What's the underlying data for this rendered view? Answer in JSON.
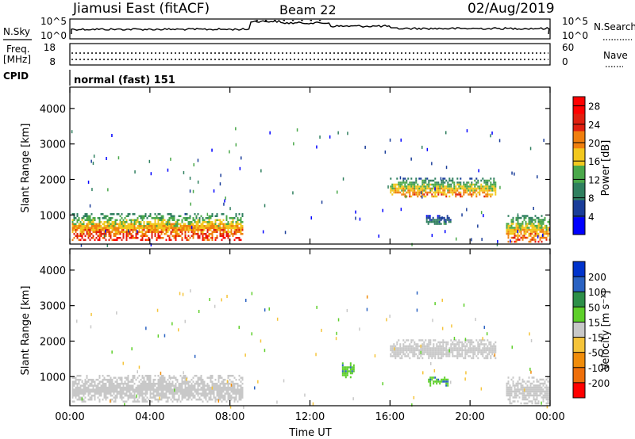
{
  "header": {
    "title": "Jiamusi East (fitACF)",
    "beam": "Beam 22",
    "date": "02/Aug/2019"
  },
  "noise_panel": {
    "left_label": "N.Sky",
    "right_label": "N.Search",
    "left_ticks": [
      "10^5",
      "10^0"
    ],
    "right_ticks": [
      "10^5",
      "10^0"
    ]
  },
  "freq_panel": {
    "left_label_1": "Freq.",
    "left_label_2": "[MHz]",
    "left_ticks": [
      "18",
      "8"
    ],
    "right_label": "Nave",
    "right_ticks": [
      "60",
      "0"
    ]
  },
  "cpid": {
    "label": "CPID",
    "value": "normal (fast) 151"
  },
  "chart_data": [
    {
      "type": "heatmap",
      "xlabel": "Time UT",
      "ylabel": "Slant Range [km]",
      "x_ticks": [
        "00:00",
        "04:00",
        "08:00",
        "12:00",
        "16:00",
        "20:00",
        "00:00"
      ],
      "x_range_hours": [
        0,
        24
      ],
      "ylim": [
        180,
        4600
      ],
      "y_ticks": [
        1000,
        2000,
        3000,
        4000
      ],
      "colorbar": {
        "label": "Power [dB]",
        "ticks": [
          4,
          8,
          12,
          16,
          20,
          24,
          28
        ],
        "range": [
          0,
          30
        ],
        "colors": [
          "#0000ff",
          "#1a3d99",
          "#2f7f5f",
          "#4aa84a",
          "#f2c81e",
          "#f07f0e",
          "#e01f0f",
          "#ff0000"
        ]
      },
      "echo_regions": [
        {
          "t_start": 0.1,
          "t_end": 8.6,
          "r_start": 280,
          "r_end": 1050,
          "peak_dB": 28
        },
        {
          "t_start": 16.0,
          "t_end": 21.3,
          "r_start": 1500,
          "r_end": 2050,
          "peak_dB": 24
        },
        {
          "t_start": 17.8,
          "t_end": 19.0,
          "r_start": 750,
          "r_end": 1000,
          "peak_dB": 12
        },
        {
          "t_start": 21.8,
          "t_end": 24.0,
          "r_start": 250,
          "r_end": 1000,
          "peak_dB": 26
        }
      ]
    },
    {
      "type": "heatmap",
      "xlabel": "Time UT",
      "ylabel": "Slant Range [km]",
      "x_ticks": [
        "00:00",
        "04:00",
        "08:00",
        "12:00",
        "16:00",
        "20:00",
        "00:00"
      ],
      "x_range_hours": [
        0,
        24
      ],
      "ylim": [
        180,
        4600
      ],
      "y_ticks": [
        1000,
        2000,
        3000,
        4000
      ],
      "colorbar": {
        "label": "Velocity [m s⁻¹]",
        "ticks": [
          200,
          100,
          50,
          15,
          -15,
          -50,
          -100,
          -200
        ],
        "colors": [
          "#0033cc",
          "#2a62c2",
          "#2d8f48",
          "#5ecf2a",
          "#c8c8c8",
          "#f5c43a",
          "#f08c0a",
          "#ee6f0a",
          "#ff0000"
        ]
      },
      "echo_regions": [
        {
          "t_start": 0.1,
          "t_end": 8.6,
          "r_start": 280,
          "r_end": 1050,
          "velocity": 0
        },
        {
          "t_start": 16.0,
          "t_end": 21.3,
          "r_start": 1500,
          "r_end": 2050,
          "velocity": 0
        },
        {
          "t_start": 13.6,
          "t_end": 14.2,
          "r_start": 1000,
          "r_end": 1400,
          "velocity": 40
        },
        {
          "t_start": 17.9,
          "t_end": 18.9,
          "r_start": 750,
          "r_end": 1000,
          "velocity": 40
        },
        {
          "t_start": 21.8,
          "t_end": 24.0,
          "r_start": 250,
          "r_end": 1000,
          "velocity": 0
        }
      ]
    }
  ]
}
